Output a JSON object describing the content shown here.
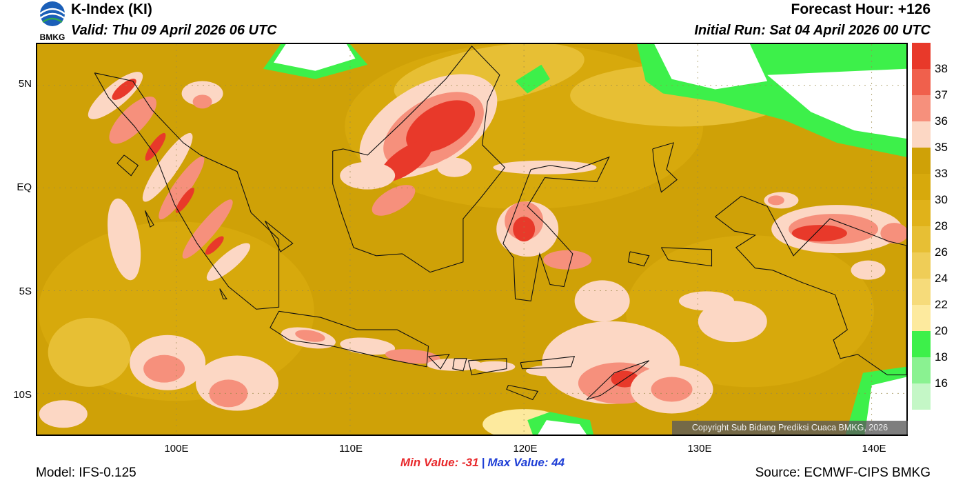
{
  "header": {
    "title": "K-Index (KI)",
    "valid": "Valid: Thu 09 April 2026 06 UTC",
    "forecast_hour": "Forecast Hour: +126",
    "initial_run": "Initial Run: Sat 04 April 2026 00 UTC",
    "logo_text": "BMKG"
  },
  "axes": {
    "lat_labels": [
      "5N",
      "EQ",
      "5S",
      "10S"
    ],
    "lon_labels": [
      "100E",
      "110E",
      "120E",
      "130E",
      "140E"
    ]
  },
  "stats": {
    "min_label": "Min Value: -31",
    "separator": "|",
    "max_label": "Max Value:  44"
  },
  "footer": {
    "model": "Model: IFS-0.125",
    "source": "Source: ECMWF-CIPS BMKG",
    "copyright": "Copyright Sub Bidang Prediksi Cuaca BMKG, 2026"
  },
  "colorbar": {
    "levels": [
      "38",
      "37",
      "36",
      "35",
      "33",
      "30",
      "28",
      "26",
      "24",
      "22",
      "20",
      "18",
      "16"
    ],
    "colors": [
      "#e8392a",
      "#f0604c",
      "#f6907c",
      "#fcd7c4",
      "#cfa107",
      "#d7a90c",
      "#e0b21a",
      "#e7bf34",
      "#efcd57",
      "#f6db7a",
      "#fdea9e",
      "#3df04a",
      "#8af291",
      "#c4f7c6",
      "#ffffff"
    ]
  },
  "map": {
    "extent": {
      "lon_min": 92,
      "lon_max": 142,
      "lat_min": -12,
      "lat_max": 7
    },
    "base_color": "#cfa107",
    "colors": {
      "sea_high": "#d7a90c",
      "warm": "#e7bf34",
      "light": "#fdea9e",
      "pink": "#fcd7c4",
      "salmon": "#f6907c",
      "red": "#e8392a",
      "green": "#3df04a",
      "white": "#ffffff"
    }
  }
}
